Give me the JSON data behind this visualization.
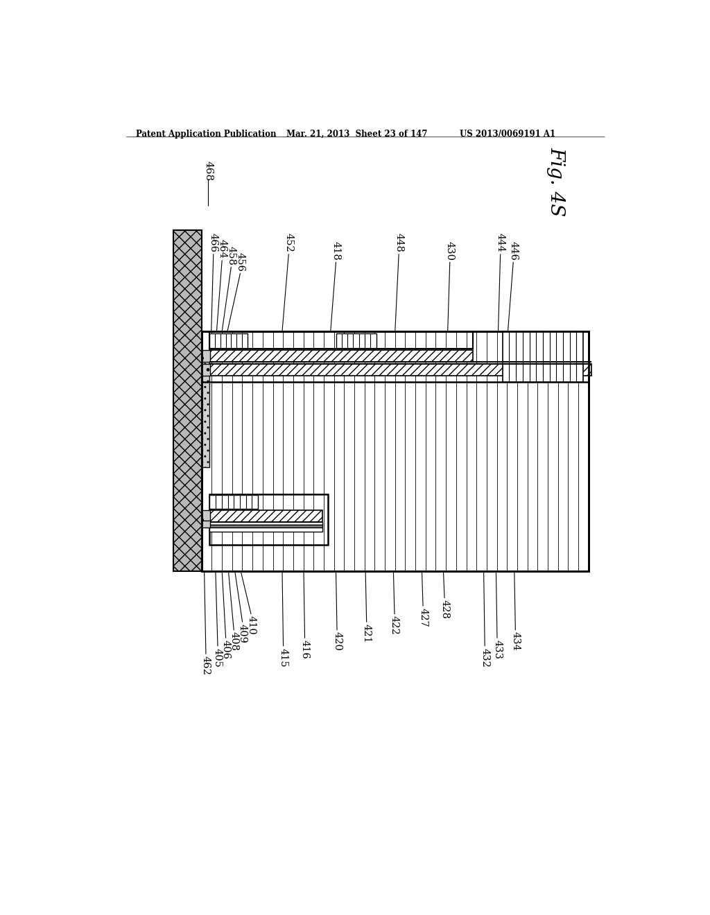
{
  "header_left": "Patent Application Publication",
  "header_mid": "Mar. 21, 2013  Sheet 23 of 147",
  "header_right": "US 2013/0069191 A1",
  "background_color": "#ffffff"
}
